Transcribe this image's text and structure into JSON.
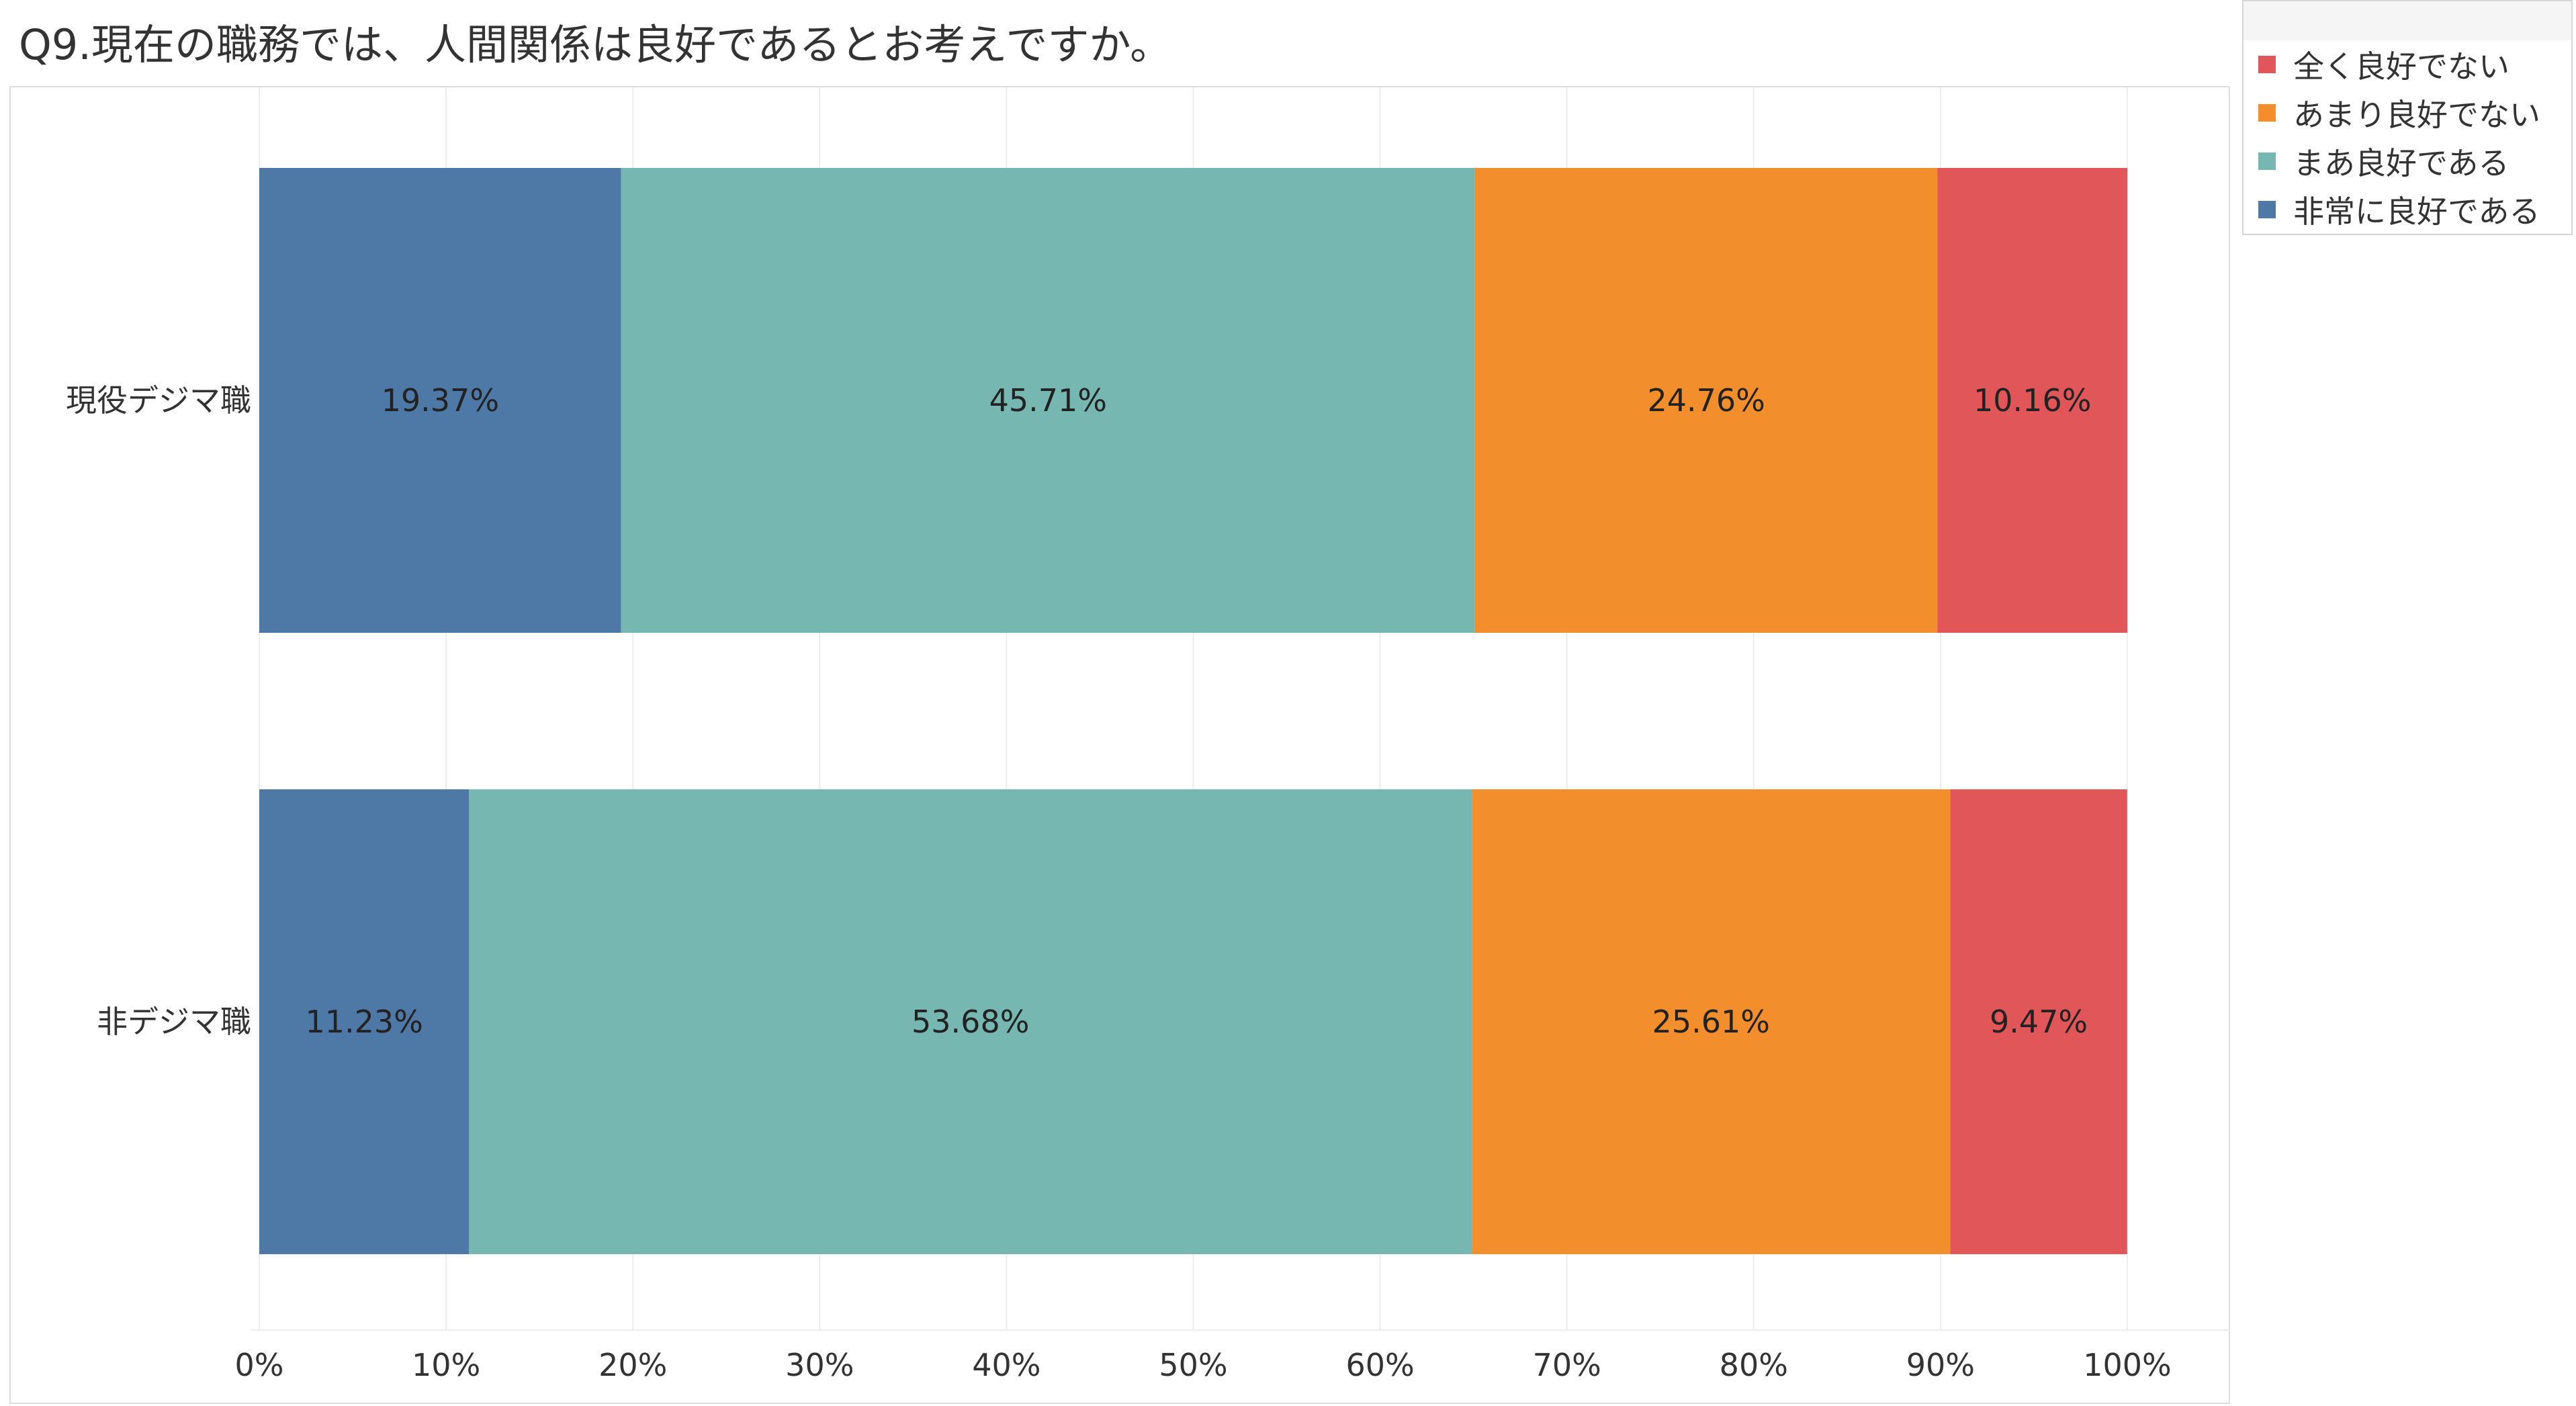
{
  "title": "Q9.現在の職務では、人間関係は良好であるとお考えですか。",
  "chart_data": {
    "type": "bar",
    "orientation": "horizontal",
    "stacked": true,
    "categories": [
      "現役デジマ職",
      "非デジマ職"
    ],
    "series": [
      {
        "name": "非常に良好である",
        "color": "#4e79a7",
        "values": [
          19.37,
          11.23
        ],
        "labels": [
          "19.37%",
          "11.23%"
        ]
      },
      {
        "name": "まあ良好である",
        "color": "#76b7b2",
        "values": [
          45.71,
          53.68
        ],
        "labels": [
          "45.71%",
          "53.68%"
        ]
      },
      {
        "name": "あまり良好でない",
        "color": "#f28e2b",
        "values": [
          24.76,
          25.61
        ],
        "labels": [
          "24.76%",
          "25.61%"
        ]
      },
      {
        "name": "全く良好でない",
        "color": "#e15759",
        "values": [
          10.16,
          9.47
        ],
        "labels": [
          "10.16%",
          "9.47%"
        ]
      }
    ],
    "xlim": [
      0,
      100
    ],
    "xticks": [
      "0%",
      "10%",
      "20%",
      "30%",
      "40%",
      "50%",
      "60%",
      "70%",
      "80%",
      "90%",
      "100%"
    ],
    "grid": true,
    "legend_position": "top-right"
  },
  "legend": {
    "items": [
      {
        "label": "全く良好でない",
        "color": "#e15759"
      },
      {
        "label": "あまり良好でない",
        "color": "#f28e2b"
      },
      {
        "label": "まあ良好である",
        "color": "#76b7b2"
      },
      {
        "label": "非常に良好である",
        "color": "#4e79a7"
      }
    ]
  }
}
